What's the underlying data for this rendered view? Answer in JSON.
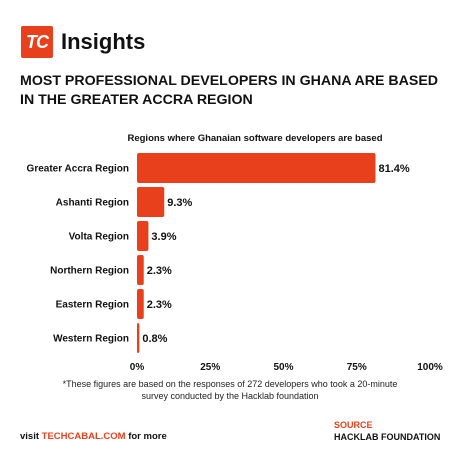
{
  "brand": {
    "logo_text": "TC",
    "name": "Insights",
    "accent": "#e8401c"
  },
  "headline": "MOST PROFESSIONAL DEVELOPERS IN GHANA ARE BASED IN THE GREATER ACCRA REGION",
  "chart_data": {
    "type": "bar",
    "orientation": "horizontal",
    "title": "Regions where Ghanaian software developers are based",
    "categories": [
      "Greater Accra Region",
      "Ashanti Region",
      "Volta Region",
      "Northern Region",
      "Eastern Region",
      "Western Region"
    ],
    "values": [
      81.4,
      9.3,
      3.9,
      2.3,
      2.3,
      0.8
    ],
    "value_labels": [
      "81.4%",
      "9.3%",
      "3.9%",
      "2.3%",
      "2.3%",
      "0.8%"
    ],
    "xlim": [
      0,
      100
    ],
    "x_ticks": [
      0,
      25,
      50,
      75,
      100
    ],
    "x_tick_labels": [
      "0%",
      "25%",
      "50%",
      "75%",
      "100%"
    ],
    "bar_color": "#e8401c",
    "grid": false
  },
  "footnote": "*These figures are based on the responses of 272 developers who took a 20-minute survey conducted by the Hacklab foundation",
  "footer": {
    "visit_prefix": "visit ",
    "visit_site": "TECHCABAL.COM",
    "visit_suffix": " for more",
    "source_label": "SOURCE",
    "source_name": "HACKLAB FOUNDATION"
  }
}
